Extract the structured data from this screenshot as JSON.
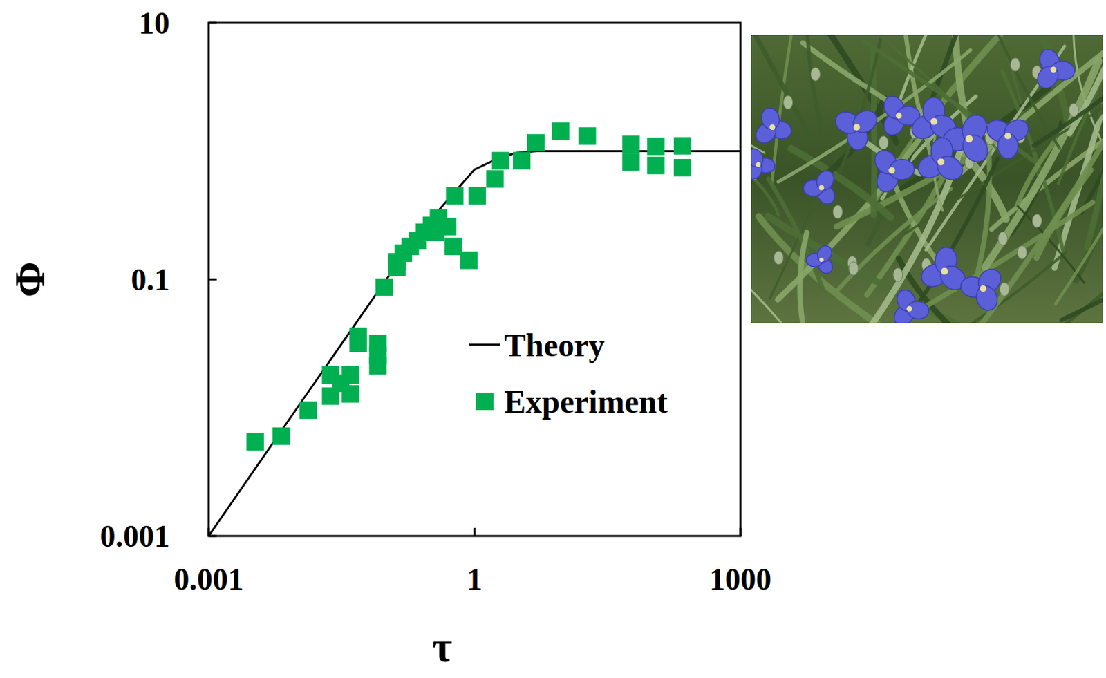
{
  "chart_data": {
    "type": "scatter",
    "x_label": "τ",
    "y_label": "Φ",
    "log": true,
    "xlim": [
      0.001,
      1000
    ],
    "ylim": [
      0.001,
      10
    ],
    "xticks": [
      0.001,
      1,
      1000
    ],
    "yticks": [
      0.001,
      0.1,
      10
    ],
    "legend": "lower right",
    "series": [
      {
        "name": "Theory",
        "type": "line",
        "color": "#000000",
        "line_style": "solid",
        "x": [
          0.001,
          0.01,
          0.1,
          0.3,
          1,
          2,
          3,
          5,
          10,
          1000
        ],
        "values": [
          0.001,
          0.01,
          0.099,
          0.28,
          0.72,
          0.9,
          0.97,
          1.0,
          1.0,
          1.0
        ]
      },
      {
        "name": "Experiment",
        "type": "scatter",
        "color": "#00b050",
        "marker": "square",
        "x": [
          0.00335,
          0.00659,
          0.0133,
          0.0238,
          0.0238,
          0.0308,
          0.0397,
          0.0397,
          0.0486,
          0.0486,
          0.0811,
          0.0811,
          0.0811,
          0.0957,
          0.133,
          0.133,
          0.157,
          0.188,
          0.226,
          0.272,
          0.327,
          0.365,
          0.392,
          0.497,
          0.597,
          0.575,
          0.863,
          1.07,
          1.7,
          1.97,
          3.4,
          4.91,
          9.33,
          18.7,
          58.2,
          58.2,
          111,
          111,
          222,
          222
        ],
        "values": [
          0.00542,
          0.006,
          0.00957,
          0.018,
          0.0123,
          0.0155,
          0.018,
          0.0128,
          0.036,
          0.0317,
          0.0317,
          0.0256,
          0.0212,
          0.087,
          0.137,
          0.124,
          0.16,
          0.181,
          0.2,
          0.233,
          0.264,
          0.233,
          0.3,
          0.258,
          0.449,
          0.181,
          0.141,
          0.449,
          0.608,
          0.843,
          0.843,
          1.16,
          1.43,
          1.31,
          1.13,
          0.822,
          1.09,
          0.773,
          1.1,
          0.743
        ]
      }
    ]
  }
}
